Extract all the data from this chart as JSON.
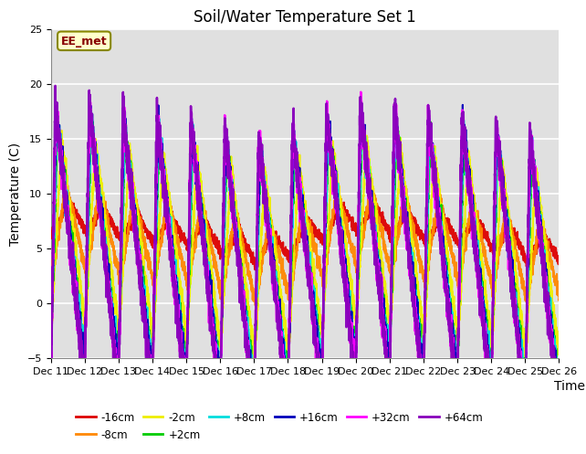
{
  "title": "Soil/Water Temperature Set 1",
  "ylabel": "Temperature (C)",
  "xlabel": "Time",
  "annotation": "EE_met",
  "ylim": [
    -5,
    25
  ],
  "yticks": [
    -5,
    0,
    5,
    10,
    15,
    20,
    25
  ],
  "xtick_labels": [
    "Dec 11",
    "Dec 12",
    "Dec 13",
    "Dec 14",
    "Dec 15",
    "Dec 16",
    "Dec 17",
    "Dec 18",
    "Dec 19",
    "Dec 20",
    "Dec 21",
    "Dec 22",
    "Dec 23",
    "Dec 24",
    "Dec 25",
    "Dec 26"
  ],
  "series_order": [
    "-16cm",
    "-8cm",
    "-2cm",
    "+2cm",
    "+8cm",
    "+16cm",
    "+32cm",
    "+64cm"
  ],
  "series": {
    "-16cm": {
      "color": "#dd0000",
      "lw": 1.5
    },
    "-8cm": {
      "color": "#ff8800",
      "lw": 1.5
    },
    "-2cm": {
      "color": "#eeee00",
      "lw": 1.5
    },
    "+2cm": {
      "color": "#00cc00",
      "lw": 1.5
    },
    "+8cm": {
      "color": "#00dddd",
      "lw": 1.5
    },
    "+16cm": {
      "color": "#0000bb",
      "lw": 1.5
    },
    "+32cm": {
      "color": "#ff00ff",
      "lw": 1.8
    },
    "+64cm": {
      "color": "#8800bb",
      "lw": 1.8
    }
  },
  "legend_row1": [
    "-16cm",
    "-8cm",
    "-2cm",
    "+2cm",
    "+8cm",
    "+16cm"
  ],
  "legend_row2": [
    "+32cm",
    "+64cm"
  ],
  "bg_color": "#e0e0e0",
  "grid_color": "#ffffff",
  "title_fontsize": 12,
  "tick_fontsize": 8,
  "label_fontsize": 10
}
